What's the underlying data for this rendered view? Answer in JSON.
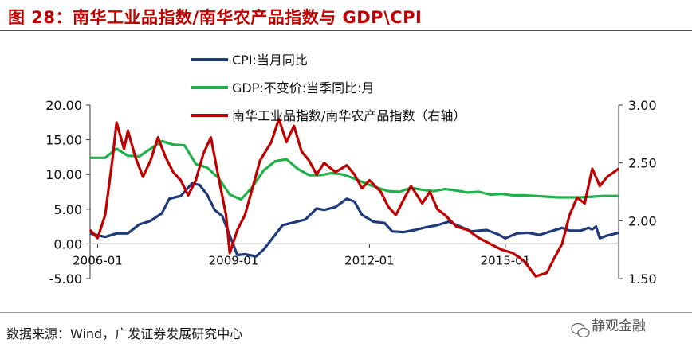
{
  "header": {
    "title": "图 28：南华工业品指数/南华农产品指数与 GDP\\CPI"
  },
  "footer": {
    "source": "数据来源：Wind，广发证券发展研究中心",
    "watermark": "静观金融"
  },
  "colors": {
    "title": "#c00000",
    "cpi": "#1f3a7a",
    "gdp": "#22b04a",
    "ratio": "#c00000"
  },
  "chart_data": {
    "type": "line",
    "x_ticks": [
      "2006-01",
      "2009-01",
      "2012-01",
      "2015-01"
    ],
    "x_range": [
      "2005-11",
      "2017-07"
    ],
    "y_left": {
      "ticks": [
        "20.00",
        "15.00",
        "10.00",
        "5.00",
        "0.00",
        "-5.00"
      ],
      "range": [
        -5,
        20
      ]
    },
    "y_right": {
      "ticks": [
        "3.00",
        "2.50",
        "2.00",
        "1.50"
      ],
      "range": [
        1.5,
        3.0
      ]
    },
    "legend": [
      "CPI:当月同比",
      "GDP:不变价:当季同比:月",
      "南华工业品指数/南华农产品指数（右轴）"
    ],
    "series": [
      {
        "name": "CPI:当月同比",
        "axis": "left",
        "points": [
          [
            "2005-11",
            1.5
          ],
          [
            "2006-03",
            1.0
          ],
          [
            "2006-06",
            1.5
          ],
          [
            "2006-09",
            1.5
          ],
          [
            "2006-12",
            2.8
          ],
          [
            "2007-03",
            3.3
          ],
          [
            "2007-06",
            4.4
          ],
          [
            "2007-08",
            6.5
          ],
          [
            "2007-11",
            6.9
          ],
          [
            "2008-02",
            8.7
          ],
          [
            "2008-04",
            8.5
          ],
          [
            "2008-06",
            7.1
          ],
          [
            "2008-08",
            4.9
          ],
          [
            "2008-10",
            4.0
          ],
          [
            "2008-12",
            1.2
          ],
          [
            "2009-02",
            -1.6
          ],
          [
            "2009-04",
            -1.5
          ],
          [
            "2009-07",
            -1.8
          ],
          [
            "2009-09",
            -0.8
          ],
          [
            "2009-11",
            0.6
          ],
          [
            "2010-02",
            2.7
          ],
          [
            "2010-05",
            3.1
          ],
          [
            "2010-08",
            3.5
          ],
          [
            "2010-11",
            5.1
          ],
          [
            "2011-01",
            4.9
          ],
          [
            "2011-04",
            5.3
          ],
          [
            "2011-07",
            6.5
          ],
          [
            "2011-09",
            6.1
          ],
          [
            "2011-11",
            4.2
          ],
          [
            "2012-02",
            3.2
          ],
          [
            "2012-05",
            3.0
          ],
          [
            "2012-07",
            1.8
          ],
          [
            "2012-10",
            1.7
          ],
          [
            "2013-01",
            2.0
          ],
          [
            "2013-04",
            2.4
          ],
          [
            "2013-07",
            2.7
          ],
          [
            "2013-10",
            3.2
          ],
          [
            "2014-01",
            2.5
          ],
          [
            "2014-04",
            1.8
          ],
          [
            "2014-08",
            2.0
          ],
          [
            "2014-11",
            1.4
          ],
          [
            "2015-01",
            0.8
          ],
          [
            "2015-04",
            1.5
          ],
          [
            "2015-07",
            1.6
          ],
          [
            "2015-10",
            1.3
          ],
          [
            "2016-01",
            1.8
          ],
          [
            "2016-04",
            2.3
          ],
          [
            "2016-06",
            1.9
          ],
          [
            "2016-09",
            1.9
          ],
          [
            "2016-11",
            2.3
          ],
          [
            "2016-12",
            2.1
          ],
          [
            "2017-01",
            2.5
          ],
          [
            "2017-02",
            0.8
          ],
          [
            "2017-04",
            1.2
          ],
          [
            "2017-07",
            1.6
          ]
        ]
      },
      {
        "name": "GDP:不变价:当季同比:月",
        "axis": "left",
        "points": [
          [
            "2005-11",
            12.4
          ],
          [
            "2006-03",
            12.4
          ],
          [
            "2006-06",
            13.7
          ],
          [
            "2006-09",
            12.7
          ],
          [
            "2006-12",
            12.6
          ],
          [
            "2007-03",
            13.7
          ],
          [
            "2007-06",
            14.8
          ],
          [
            "2007-09",
            14.3
          ],
          [
            "2007-12",
            14.2
          ],
          [
            "2008-03",
            11.5
          ],
          [
            "2008-06",
            11.0
          ],
          [
            "2008-09",
            9.5
          ],
          [
            "2008-12",
            7.1
          ],
          [
            "2009-03",
            6.4
          ],
          [
            "2009-06",
            8.2
          ],
          [
            "2009-09",
            10.6
          ],
          [
            "2009-12",
            11.9
          ],
          [
            "2010-03",
            12.2
          ],
          [
            "2010-06",
            10.8
          ],
          [
            "2010-09",
            9.9
          ],
          [
            "2010-12",
            9.9
          ],
          [
            "2011-03",
            10.2
          ],
          [
            "2011-06",
            10.0
          ],
          [
            "2011-09",
            9.4
          ],
          [
            "2011-12",
            8.7
          ],
          [
            "2012-03",
            8.1
          ],
          [
            "2012-06",
            7.6
          ],
          [
            "2012-09",
            7.5
          ],
          [
            "2012-12",
            8.1
          ],
          [
            "2013-03",
            7.8
          ],
          [
            "2013-06",
            7.6
          ],
          [
            "2013-09",
            7.9
          ],
          [
            "2013-12",
            7.7
          ],
          [
            "2014-03",
            7.4
          ],
          [
            "2014-06",
            7.5
          ],
          [
            "2014-09",
            7.1
          ],
          [
            "2014-12",
            7.2
          ],
          [
            "2015-03",
            7.0
          ],
          [
            "2015-06",
            7.0
          ],
          [
            "2015-09",
            6.9
          ],
          [
            "2015-12",
            6.8
          ],
          [
            "2016-03",
            6.7
          ],
          [
            "2016-06",
            6.7
          ],
          [
            "2016-09",
            6.7
          ],
          [
            "2016-12",
            6.8
          ],
          [
            "2017-03",
            6.9
          ],
          [
            "2017-07",
            6.9
          ]
        ]
      },
      {
        "name": "南华工业品指数/南华农产品指数（右轴）",
        "axis": "right",
        "points": [
          [
            "2005-11",
            1.92
          ],
          [
            "2006-01",
            1.85
          ],
          [
            "2006-03",
            2.05
          ],
          [
            "2006-05",
            2.55
          ],
          [
            "2006-06",
            2.85
          ],
          [
            "2006-08",
            2.62
          ],
          [
            "2006-09",
            2.78
          ],
          [
            "2006-11",
            2.55
          ],
          [
            "2007-01",
            2.38
          ],
          [
            "2007-03",
            2.52
          ],
          [
            "2007-05",
            2.72
          ],
          [
            "2007-07",
            2.55
          ],
          [
            "2007-09",
            2.42
          ],
          [
            "2007-11",
            2.35
          ],
          [
            "2008-01",
            2.22
          ],
          [
            "2008-03",
            2.35
          ],
          [
            "2008-05",
            2.58
          ],
          [
            "2008-07",
            2.72
          ],
          [
            "2008-09",
            2.38
          ],
          [
            "2008-11",
            2.05
          ],
          [
            "2008-12",
            1.72
          ],
          [
            "2009-02",
            1.92
          ],
          [
            "2009-04",
            2.05
          ],
          [
            "2009-06",
            2.28
          ],
          [
            "2009-08",
            2.52
          ],
          [
            "2009-11",
            2.68
          ],
          [
            "2010-01",
            2.88
          ],
          [
            "2010-03",
            2.68
          ],
          [
            "2010-05",
            2.82
          ],
          [
            "2010-07",
            2.6
          ],
          [
            "2010-09",
            2.52
          ],
          [
            "2010-11",
            2.4
          ],
          [
            "2011-01",
            2.5
          ],
          [
            "2011-04",
            2.42
          ],
          [
            "2011-07",
            2.48
          ],
          [
            "2011-09",
            2.4
          ],
          [
            "2011-11",
            2.28
          ],
          [
            "2012-01",
            2.35
          ],
          [
            "2012-04",
            2.25
          ],
          [
            "2012-06",
            2.12
          ],
          [
            "2012-08",
            2.05
          ],
          [
            "2012-10",
            2.18
          ],
          [
            "2012-12",
            2.3
          ],
          [
            "2013-03",
            2.15
          ],
          [
            "2013-05",
            2.25
          ],
          [
            "2013-07",
            2.1
          ],
          [
            "2013-09",
            2.05
          ],
          [
            "2013-12",
            1.95
          ],
          [
            "2014-03",
            1.92
          ],
          [
            "2014-06",
            1.85
          ],
          [
            "2014-09",
            1.8
          ],
          [
            "2014-12",
            1.75
          ],
          [
            "2015-03",
            1.72
          ],
          [
            "2015-06",
            1.65
          ],
          [
            "2015-09",
            1.52
          ],
          [
            "2015-12",
            1.55
          ],
          [
            "2016-02",
            1.68
          ],
          [
            "2016-04",
            1.8
          ],
          [
            "2016-06",
            2.05
          ],
          [
            "2016-08",
            2.2
          ],
          [
            "2016-10",
            2.15
          ],
          [
            "2016-12",
            2.45
          ],
          [
            "2017-02",
            2.3
          ],
          [
            "2017-04",
            2.38
          ],
          [
            "2017-07",
            2.45
          ]
        ]
      }
    ]
  }
}
